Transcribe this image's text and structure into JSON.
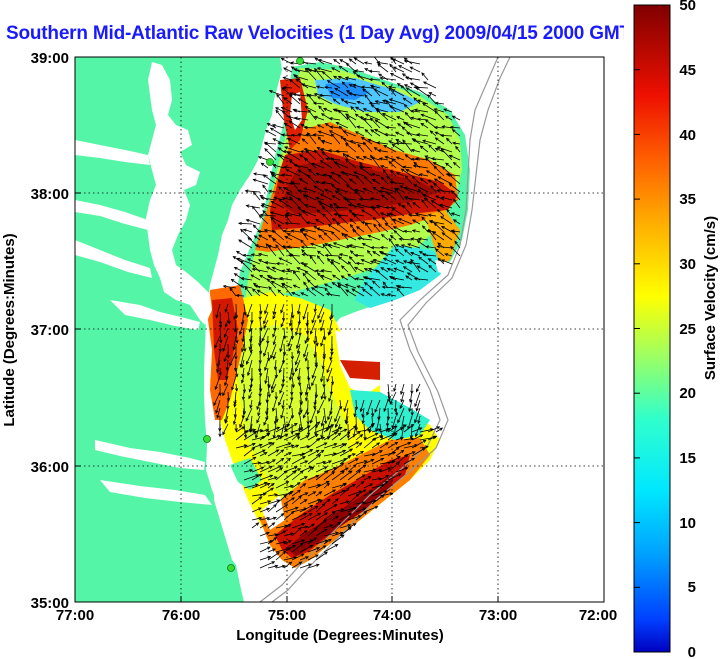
{
  "title": "Southern Mid-Atlantic Raw Velocities (1 Day Avg) 2009/04/15 2000 GMT",
  "xlabel": "Longitude (Degrees:Minutes)",
  "ylabel": "Latitude (Degrees:Minutes)",
  "colorbar_label": "Surface Velocity (cm/s)",
  "x_ticks": [
    "77:00",
    "76:00",
    "75:00",
    "74:00",
    "73:00",
    "72:00"
  ],
  "y_ticks": [
    "39:00",
    "38:00",
    "37:00",
    "36:00",
    "35:00"
  ],
  "colorbar_ticks": [
    "0",
    "5",
    "10",
    "15",
    "20",
    "25",
    "30",
    "35",
    "40",
    "45",
    "50"
  ],
  "colors": {
    "land": "#55f5a8",
    "water": "#ffffff",
    "title": "#1a1aff",
    "grid": "#000000",
    "arrows": "#000000",
    "stations": "#33dd33"
  },
  "map": {
    "lon_range": [
      -77,
      -72
    ],
    "lat_range": [
      35,
      39
    ],
    "velocity_range_cm_s": [
      0,
      50
    ],
    "colormap": "jet",
    "grid": true,
    "arrow_field": true
  }
}
